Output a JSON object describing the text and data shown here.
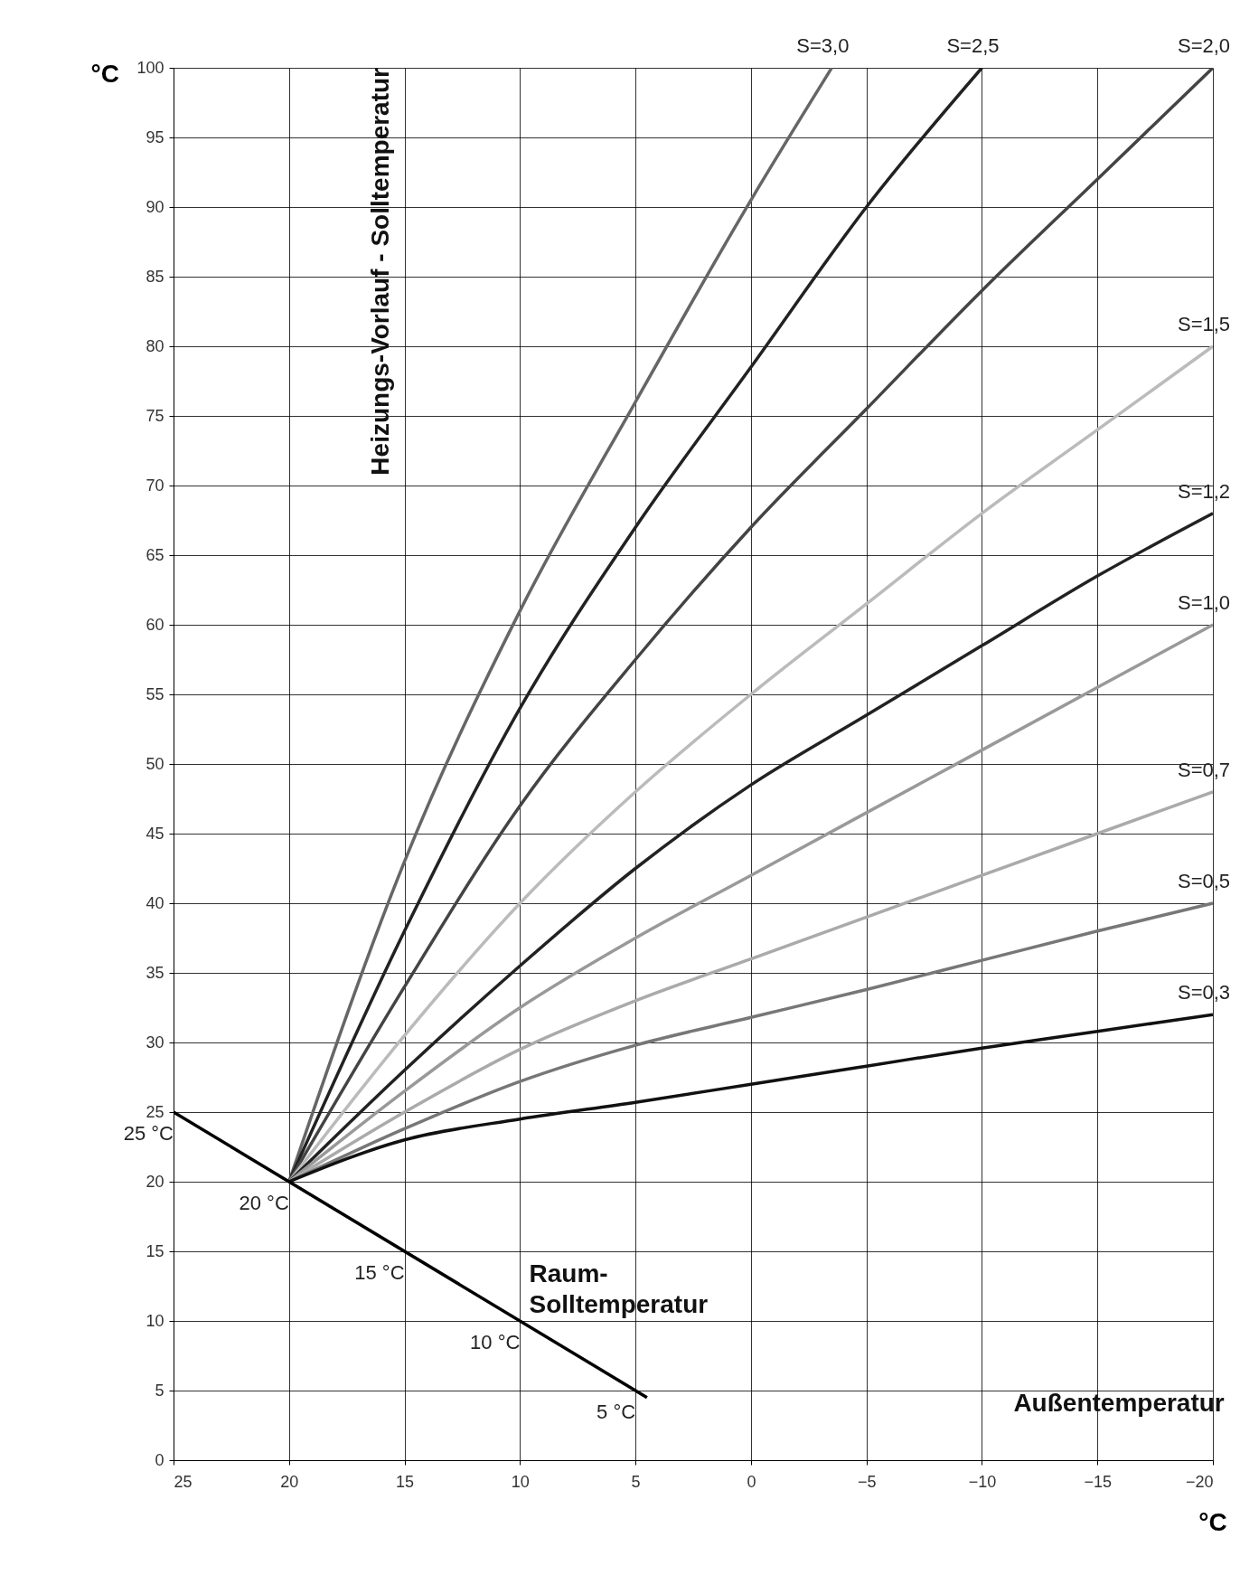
{
  "chart_data": {
    "type": "line",
    "xlabel": "°C",
    "ylabel": "°C",
    "xlim": [
      25,
      -20
    ],
    "ylim": [
      0,
      100
    ],
    "xticks": [
      25,
      20,
      15,
      10,
      5,
      0,
      -5,
      -10,
      -15,
      -20
    ],
    "yticks": [
      0,
      5,
      10,
      15,
      20,
      25,
      30,
      35,
      40,
      45,
      50,
      55,
      60,
      65,
      70,
      75,
      80,
      85,
      90,
      95,
      100
    ],
    "grid": true,
    "line_style": "solid",
    "marker": "none",
    "series": [
      {
        "name": "S=3,0",
        "color": "#666666",
        "x": [
          20,
          15,
          10,
          5,
          0,
          -3.5
        ],
        "values": [
          20,
          43,
          61,
          76,
          90.5,
          100
        ]
      },
      {
        "name": "S=2,5",
        "color": "#222222",
        "x": [
          20,
          15,
          10,
          5,
          0,
          -5,
          -10
        ],
        "values": [
          20,
          38,
          54,
          67,
          78.5,
          90,
          100
        ]
      },
      {
        "name": "S=2,0",
        "color": "#444444",
        "x": [
          20,
          15,
          10,
          5,
          0,
          -5,
          -10,
          -15,
          -20
        ],
        "values": [
          20,
          34,
          47,
          57.5,
          67,
          75.5,
          84,
          92,
          100
        ]
      },
      {
        "name": "S=1,5",
        "color": "#bbbbbb",
        "x": [
          20,
          15,
          10,
          5,
          0,
          -5,
          -10,
          -15,
          -20
        ],
        "values": [
          20,
          30.5,
          40,
          48,
          55,
          61.5,
          68,
          74,
          80
        ]
      },
      {
        "name": "S=1,2",
        "color": "#222222",
        "x": [
          20,
          15,
          10,
          5,
          0,
          -5,
          -10,
          -15,
          -20
        ],
        "values": [
          20,
          28,
          35.5,
          42.5,
          48.5,
          53.5,
          58.5,
          63.5,
          68
        ]
      },
      {
        "name": "S=1,0",
        "color": "#999999",
        "x": [
          20,
          15,
          10,
          5,
          0,
          -5,
          -10,
          -15,
          -20
        ],
        "values": [
          20,
          26.5,
          32.5,
          37.5,
          42,
          46.5,
          51,
          55.5,
          60
        ]
      },
      {
        "name": "S=0,7",
        "color": "#aaaaaa",
        "x": [
          20,
          15,
          10,
          5,
          0,
          -5,
          -10,
          -15,
          -20
        ],
        "values": [
          20,
          25,
          29.5,
          33,
          36,
          39,
          42,
          45,
          48
        ]
      },
      {
        "name": "S=0,5",
        "color": "#777777",
        "x": [
          20,
          15,
          10,
          5,
          0,
          -5,
          -10,
          -15,
          -20
        ],
        "values": [
          20,
          23.8,
          27.2,
          29.8,
          31.8,
          33.8,
          35.9,
          38,
          40
        ]
      },
      {
        "name": "S=0,3",
        "color": "#111111",
        "x": [
          20,
          15,
          10,
          5,
          0,
          -5,
          -10,
          -15,
          -20
        ],
        "values": [
          20,
          23,
          24.5,
          25.7,
          27,
          28.3,
          29.6,
          30.8,
          32
        ]
      },
      {
        "color": "#000000",
        "x": [
          25,
          4.5
        ],
        "values": [
          25,
          4.5
        ]
      }
    ],
    "annotations": [
      "Heizungs-Vorlauf - Solltemperatur",
      "Außentemperatur",
      "Raum-Solltemperatur",
      {
        "text": "25 °C",
        "x": 25,
        "y": 25
      },
      {
        "text": "20 °C",
        "x": 20,
        "y": 20
      },
      {
        "text": "15 °C",
        "x": 15,
        "y": 15
      },
      {
        "text": "10 °C",
        "x": 10,
        "y": 10
      },
      {
        "text": "5 °C",
        "x": 5,
        "y": 5
      }
    ]
  }
}
